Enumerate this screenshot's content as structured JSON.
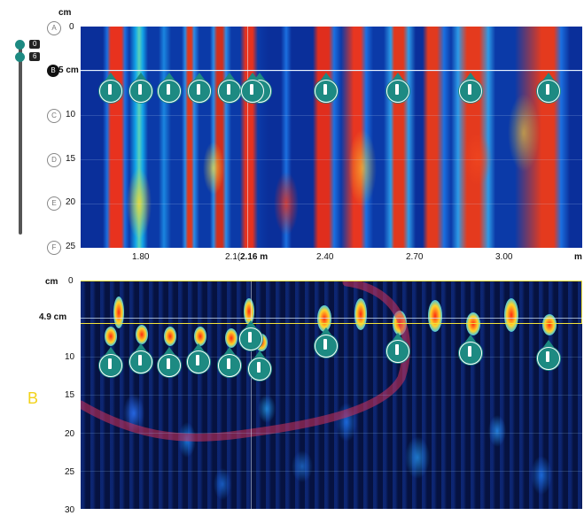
{
  "top_panel": {
    "depth_unit": "cm",
    "distance_unit": "m",
    "depth_ticks": [
      {
        "letter": "A",
        "value": "0"
      },
      {
        "letter": "B",
        "value": "5 cm"
      },
      {
        "letter": "C",
        "value": "10"
      },
      {
        "letter": "D",
        "value": "15"
      },
      {
        "letter": "E",
        "value": "20"
      },
      {
        "letter": "F",
        "value": "25"
      }
    ],
    "distance_ticks": [
      "1.80",
      "2.1(",
      "2.16 m",
      "2.40",
      "2.70",
      "3.00"
    ],
    "cursor_depth_label": "5 cm"
  },
  "left_slider": {
    "top_value": "0",
    "bottom_value": "6"
  },
  "bottom_panel": {
    "section_label": "B",
    "depth_unit": "cm",
    "depth_ticks": [
      "0",
      "5",
      "10",
      "15",
      "20",
      "25",
      "30"
    ],
    "cursor_depth_label": "4.9 cm"
  },
  "colors": {
    "marker": "#1d8a82",
    "section_label": "#f2d21a",
    "highlight": "#d2325a"
  }
}
